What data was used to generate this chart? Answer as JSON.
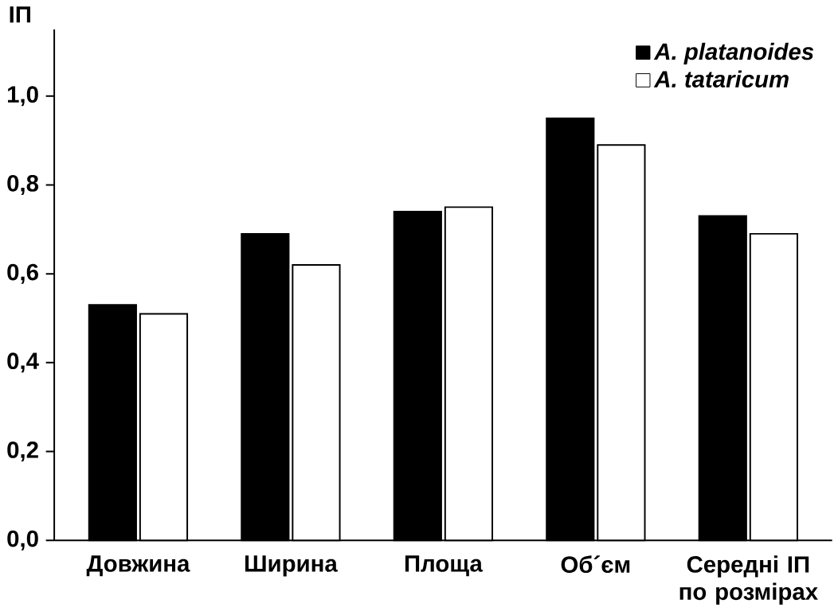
{
  "chart_data": {
    "type": "bar",
    "ylabel": "ІП",
    "categories": [
      "Довжина",
      "Ширина",
      "Площа",
      "Об´єм",
      "Середні ІП по розмірах"
    ],
    "series": [
      {
        "name": "A. platanoides",
        "color": "#000000",
        "values": [
          0.53,
          0.69,
          0.74,
          0.95,
          0.73
        ]
      },
      {
        "name": "A. tataricum",
        "color": "#ffffff",
        "values": [
          0.51,
          0.62,
          0.75,
          0.89,
          0.69
        ]
      }
    ],
    "ylim": [
      0,
      1.15
    ],
    "yticks": [
      {
        "value": 0,
        "label": "0,0"
      },
      {
        "value": 0.2,
        "label": "0,2"
      },
      {
        "value": 0.4,
        "label": "0,4"
      },
      {
        "value": 0.6,
        "label": "0,6"
      },
      {
        "value": 0.8,
        "label": "0,8"
      },
      {
        "value": 1.0,
        "label": "1,0"
      }
    ],
    "grid": false,
    "legend": "top right"
  }
}
